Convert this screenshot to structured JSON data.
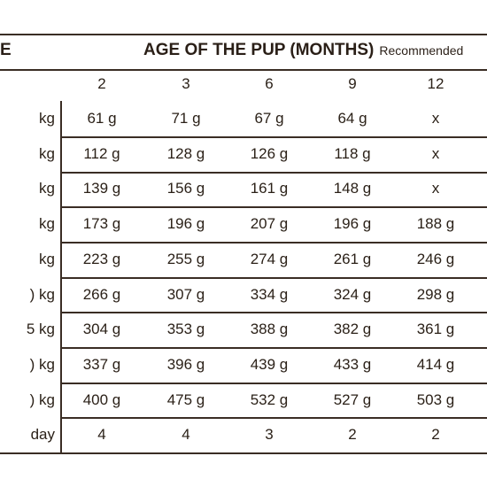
{
  "header": {
    "left_fragment": "E",
    "title": "AGE OF THE PUP (MONTHS)",
    "subtitle": "Recommended"
  },
  "months": [
    "2",
    "3",
    "6",
    "9",
    "12"
  ],
  "rows": [
    {
      "label": "kg",
      "values": [
        "61 g",
        "71 g",
        "67 g",
        "64 g",
        "x"
      ]
    },
    {
      "label": "kg",
      "values": [
        "112 g",
        "128 g",
        "126 g",
        "118 g",
        "x"
      ]
    },
    {
      "label": "kg",
      "values": [
        "139 g",
        "156 g",
        "161 g",
        "148 g",
        "x"
      ]
    },
    {
      "label": "kg",
      "values": [
        "173 g",
        "196 g",
        "207 g",
        "196 g",
        "188 g"
      ]
    },
    {
      "label": "kg",
      "values": [
        "223 g",
        "255 g",
        "274 g",
        "261 g",
        "246 g"
      ]
    },
    {
      "label": ") kg",
      "values": [
        "266 g",
        "307 g",
        "334 g",
        "324 g",
        "298 g"
      ]
    },
    {
      "label": "5 kg",
      "values": [
        "304 g",
        "353 g",
        "388 g",
        "382 g",
        "361 g"
      ]
    },
    {
      "label": ") kg",
      "values": [
        "337 g",
        "396 g",
        "439 g",
        "433 g",
        "414 g"
      ]
    },
    {
      "label": ") kg",
      "values": [
        "400 g",
        "475 g",
        "532 g",
        "527 g",
        "503 g"
      ]
    },
    {
      "label": "day",
      "values": [
        "4",
        "4",
        "3",
        "2",
        "2"
      ]
    }
  ]
}
